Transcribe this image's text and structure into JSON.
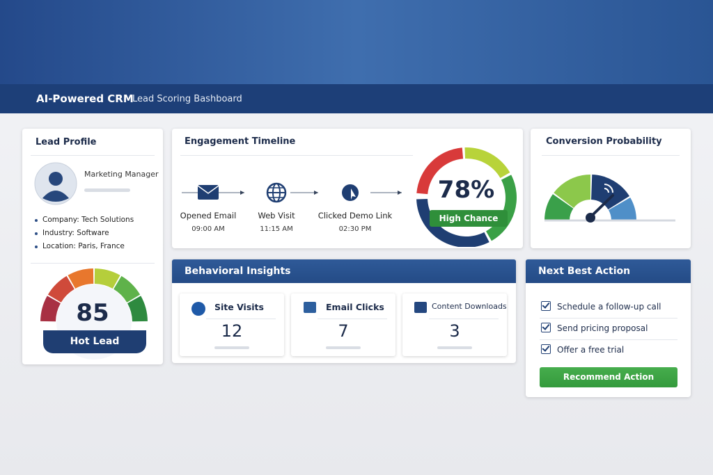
{
  "header": {
    "brand": "AI-Powered CRM",
    "title": "Lead Scoring Bashboard"
  },
  "lead_profile": {
    "title": "Lead Profile",
    "role": "Marketing Manager",
    "details": [
      "Company: Tech Solutions",
      "Industry: Software",
      "Location: Paris, France"
    ],
    "score": 85,
    "score_label": "Hot Lead"
  },
  "engagement": {
    "title": "Engagement Timeline",
    "events": [
      {
        "label": "Opened Email",
        "time": "09:00 AM"
      },
      {
        "label": "Web Visit",
        "time": "11:15 AM"
      },
      {
        "label": "Clicked Demo Link",
        "time": "02:30 PM"
      }
    ],
    "probability": "78%",
    "probability_label": "High Chance"
  },
  "conversion": {
    "title": "Conversion Probability"
  },
  "insights": {
    "title": "Behavioral Insights",
    "metrics": [
      {
        "label": "Site Visits",
        "value": 12
      },
      {
        "label": "Email Clicks",
        "value": 7
      },
      {
        "label": "Content Downloads",
        "value": 3
      }
    ]
  },
  "next_action": {
    "title": "Next Best Action",
    "actions": [
      "Schedule a follow-up call",
      "Send pricing proposal",
      "Offer a free trial"
    ],
    "button": "Recommend Action"
  }
}
